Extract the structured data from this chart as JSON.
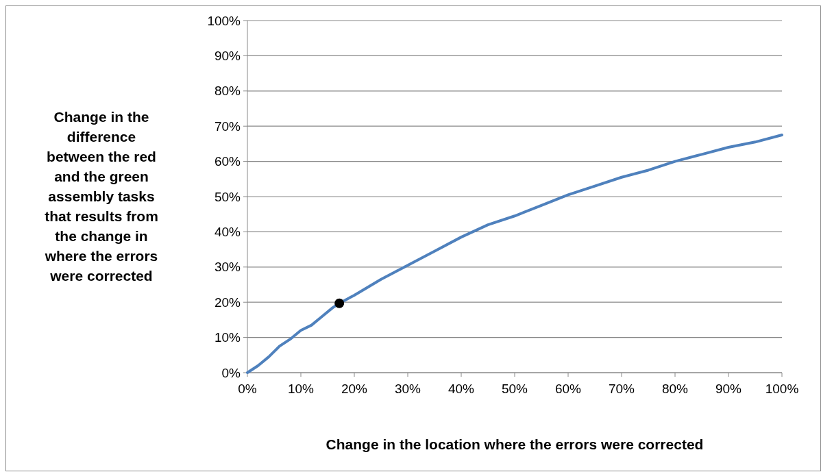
{
  "chart_data": {
    "type": "line",
    "xlabel": "Change in the location where the errors were corrected",
    "ylabel": "Change in the difference between the red and the green assembly tasks that results from the change in where the errors were corrected",
    "series": [
      {
        "color": "#4f81bd",
        "x": [
          0,
          2,
          4,
          6,
          8,
          10,
          12,
          14,
          16,
          17.2,
          20,
          25,
          30,
          35,
          40,
          45,
          50,
          55,
          60,
          65,
          70,
          75,
          80,
          85,
          90,
          95,
          100
        ],
        "values": [
          0,
          2,
          4.5,
          7.5,
          9.5,
          12,
          13.5,
          16,
          18.5,
          19.7,
          22,
          26.5,
          30.5,
          34.5,
          38.5,
          42,
          44.5,
          47.5,
          50.5,
          53,
          55.5,
          57.5,
          60,
          62,
          64,
          65.5,
          67.5
        ]
      },
      {
        "type": "scatter",
        "color": "#000000",
        "marker": "circle",
        "x": [
          17.2
        ],
        "values": [
          19.7
        ]
      }
    ],
    "xlim": [
      0,
      100
    ],
    "xticks": [
      {
        "value": 0,
        "label": "0%"
      },
      {
        "value": 10,
        "label": "10%"
      },
      {
        "value": 20,
        "label": "20%"
      },
      {
        "value": 30,
        "label": "30%"
      },
      {
        "value": 40,
        "label": "40%"
      },
      {
        "value": 50,
        "label": "50%"
      },
      {
        "value": 60,
        "label": "60%"
      },
      {
        "value": 70,
        "label": "70%"
      },
      {
        "value": 80,
        "label": "80%"
      },
      {
        "value": 90,
        "label": "90%"
      },
      {
        "value": 100,
        "label": "100%"
      }
    ],
    "ylim": [
      0,
      100
    ],
    "yticks": [
      {
        "value": 0,
        "label": "0%"
      },
      {
        "value": 10,
        "label": "10%"
      },
      {
        "value": 20,
        "label": "20%"
      },
      {
        "value": 30,
        "label": "30%"
      },
      {
        "value": 40,
        "label": "40%"
      },
      {
        "value": 50,
        "label": "50%"
      },
      {
        "value": 60,
        "label": "60%"
      },
      {
        "value": 70,
        "label": "70%"
      },
      {
        "value": 80,
        "label": "80%"
      },
      {
        "value": 90,
        "label": "90%"
      },
      {
        "value": 100,
        "label": "100%"
      }
    ],
    "grid": "y",
    "line_style": "solid"
  }
}
